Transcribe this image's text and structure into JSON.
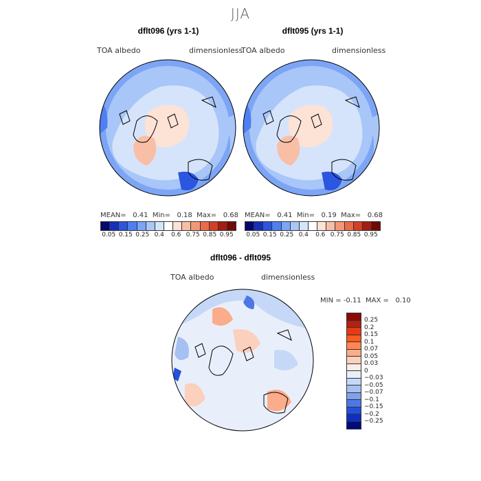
{
  "season": "JJA",
  "panels": [
    {
      "title": "dflt096 (yrs 1-1)",
      "var": "TOA albedo",
      "units": "dimensionless",
      "mean_label": "MEAN=",
      "mean": "0.41",
      "min_label": "Min=",
      "min": "0.18",
      "max_label": "Max=",
      "max": "0.68"
    },
    {
      "title": "dflt095 (yrs 1-1)",
      "var": "TOA albedo",
      "units": "dimensionless",
      "mean_label": "MEAN=",
      "mean": "0.41",
      "min_label": "Min=",
      "min": "0.19",
      "max_label": "Max=",
      "max": "0.68"
    }
  ],
  "abs_scale": {
    "colors": [
      "#08076e",
      "#1a2fb8",
      "#2a56e0",
      "#4f7ff0",
      "#7da5f5",
      "#a9c6f8",
      "#d5e4fb",
      "#ffffff",
      "#fde2d6",
      "#f8bfa6",
      "#f29878",
      "#e96b4a",
      "#d23f24",
      "#a51c12",
      "#6f0a08"
    ],
    "ticks": [
      "0.05",
      "0.15",
      "0.25",
      "0.4",
      "0.6",
      "0.75",
      "0.85",
      "0.95"
    ]
  },
  "diff": {
    "title": "dflt096 - dflt095",
    "var": "TOA albedo",
    "units": "dimensionless",
    "min_label": "MIN =",
    "min": "-0.11",
    "max_label": "MAX =",
    "max": "0.10",
    "colors": [
      "#8a0a08",
      "#b81f10",
      "#e63a12",
      "#ff5a1f",
      "#ff8654",
      "#fbac8a",
      "#fbd0bd",
      "#fbeee4",
      "#e9effa",
      "#c6d8f7",
      "#a6c0f2",
      "#7fa2ec",
      "#4e77e6",
      "#2450de",
      "#0f2fc2",
      "#030a7c"
    ],
    "labels": [
      "0.25",
      "0.2",
      "0.15",
      "0.1",
      "0.07",
      "0.05",
      "0.03",
      "0",
      "-0.03",
      "-0.05",
      "-0.07",
      "-0.1",
      "-0.15",
      "-0.2",
      "-0.25"
    ]
  }
}
